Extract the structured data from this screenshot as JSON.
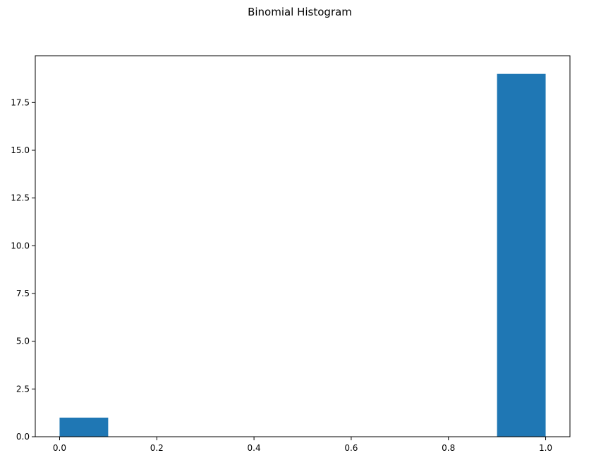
{
  "chart_data": {
    "type": "bar",
    "title": "Binomial Histogram",
    "xlabel": "",
    "ylabel": "",
    "xlim": [
      -0.05,
      1.05
    ],
    "ylim": [
      0,
      19.95
    ],
    "bins": [
      {
        "start": 0.0,
        "end": 0.1,
        "count": 1
      },
      {
        "start": 0.1,
        "end": 0.2,
        "count": 0
      },
      {
        "start": 0.2,
        "end": 0.3,
        "count": 0
      },
      {
        "start": 0.3,
        "end": 0.4,
        "count": 0
      },
      {
        "start": 0.4,
        "end": 0.5,
        "count": 0
      },
      {
        "start": 0.5,
        "end": 0.6,
        "count": 0
      },
      {
        "start": 0.6,
        "end": 0.7,
        "count": 0
      },
      {
        "start": 0.7,
        "end": 0.8,
        "count": 0
      },
      {
        "start": 0.8,
        "end": 0.9,
        "count": 0
      },
      {
        "start": 0.9,
        "end": 1.0,
        "count": 19
      }
    ],
    "xticks": [
      {
        "value": 0.0,
        "label": "0.0"
      },
      {
        "value": 0.2,
        "label": "0.2"
      },
      {
        "value": 0.4,
        "label": "0.4"
      },
      {
        "value": 0.6,
        "label": "0.6"
      },
      {
        "value": 0.8,
        "label": "0.8"
      },
      {
        "value": 1.0,
        "label": "1.0"
      }
    ],
    "yticks": [
      {
        "value": 0.0,
        "label": "0.0"
      },
      {
        "value": 2.5,
        "label": "2.5"
      },
      {
        "value": 5.0,
        "label": "5.0"
      },
      {
        "value": 7.5,
        "label": "7.5"
      },
      {
        "value": 10.0,
        "label": "10.0"
      },
      {
        "value": 12.5,
        "label": "12.5"
      },
      {
        "value": 15.0,
        "label": "15.0"
      },
      {
        "value": 17.5,
        "label": "17.5"
      }
    ],
    "bar_color": "#1f77b4",
    "grid": false,
    "legend": "none"
  }
}
